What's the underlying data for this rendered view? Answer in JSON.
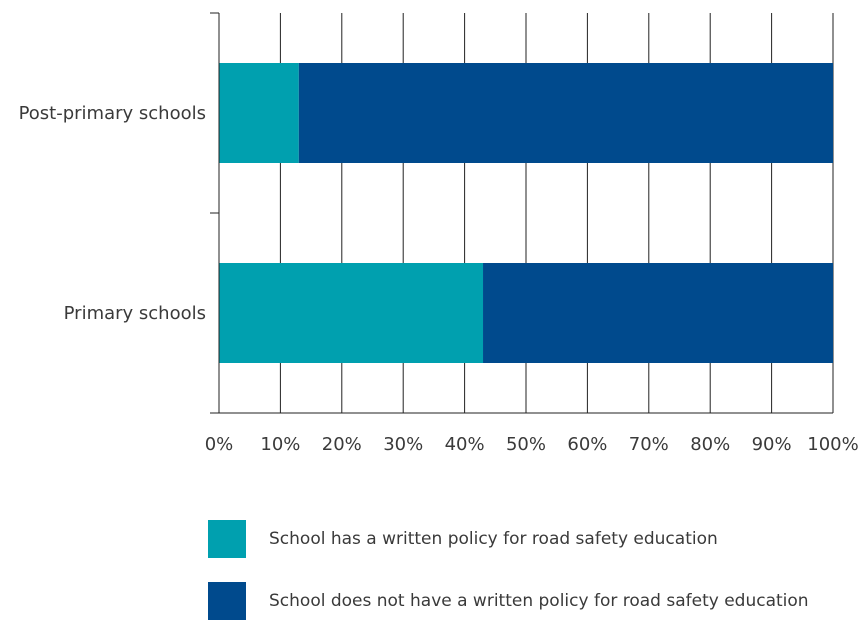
{
  "chart_data": {
    "type": "bar",
    "orientation": "horizontal",
    "stacked": true,
    "categories": [
      "Post-primary schools",
      "Primary schools"
    ],
    "series": [
      {
        "name": "School has a written policy for road safety education",
        "values": [
          13,
          43
        ],
        "color": "#00a0af"
      },
      {
        "name": "School does not have a written policy for road safety education",
        "values": [
          87,
          57
        ],
        "color": "#004a8d"
      }
    ],
    "x_ticks": [
      "0%",
      "10%",
      "20%",
      "30%",
      "40%",
      "50%",
      "60%",
      "70%",
      "80%",
      "90%",
      "100%"
    ],
    "xlim": [
      0,
      100
    ],
    "title": "",
    "xlabel": "",
    "ylabel": "",
    "grid": "vertical",
    "legend_position": "bottom"
  }
}
